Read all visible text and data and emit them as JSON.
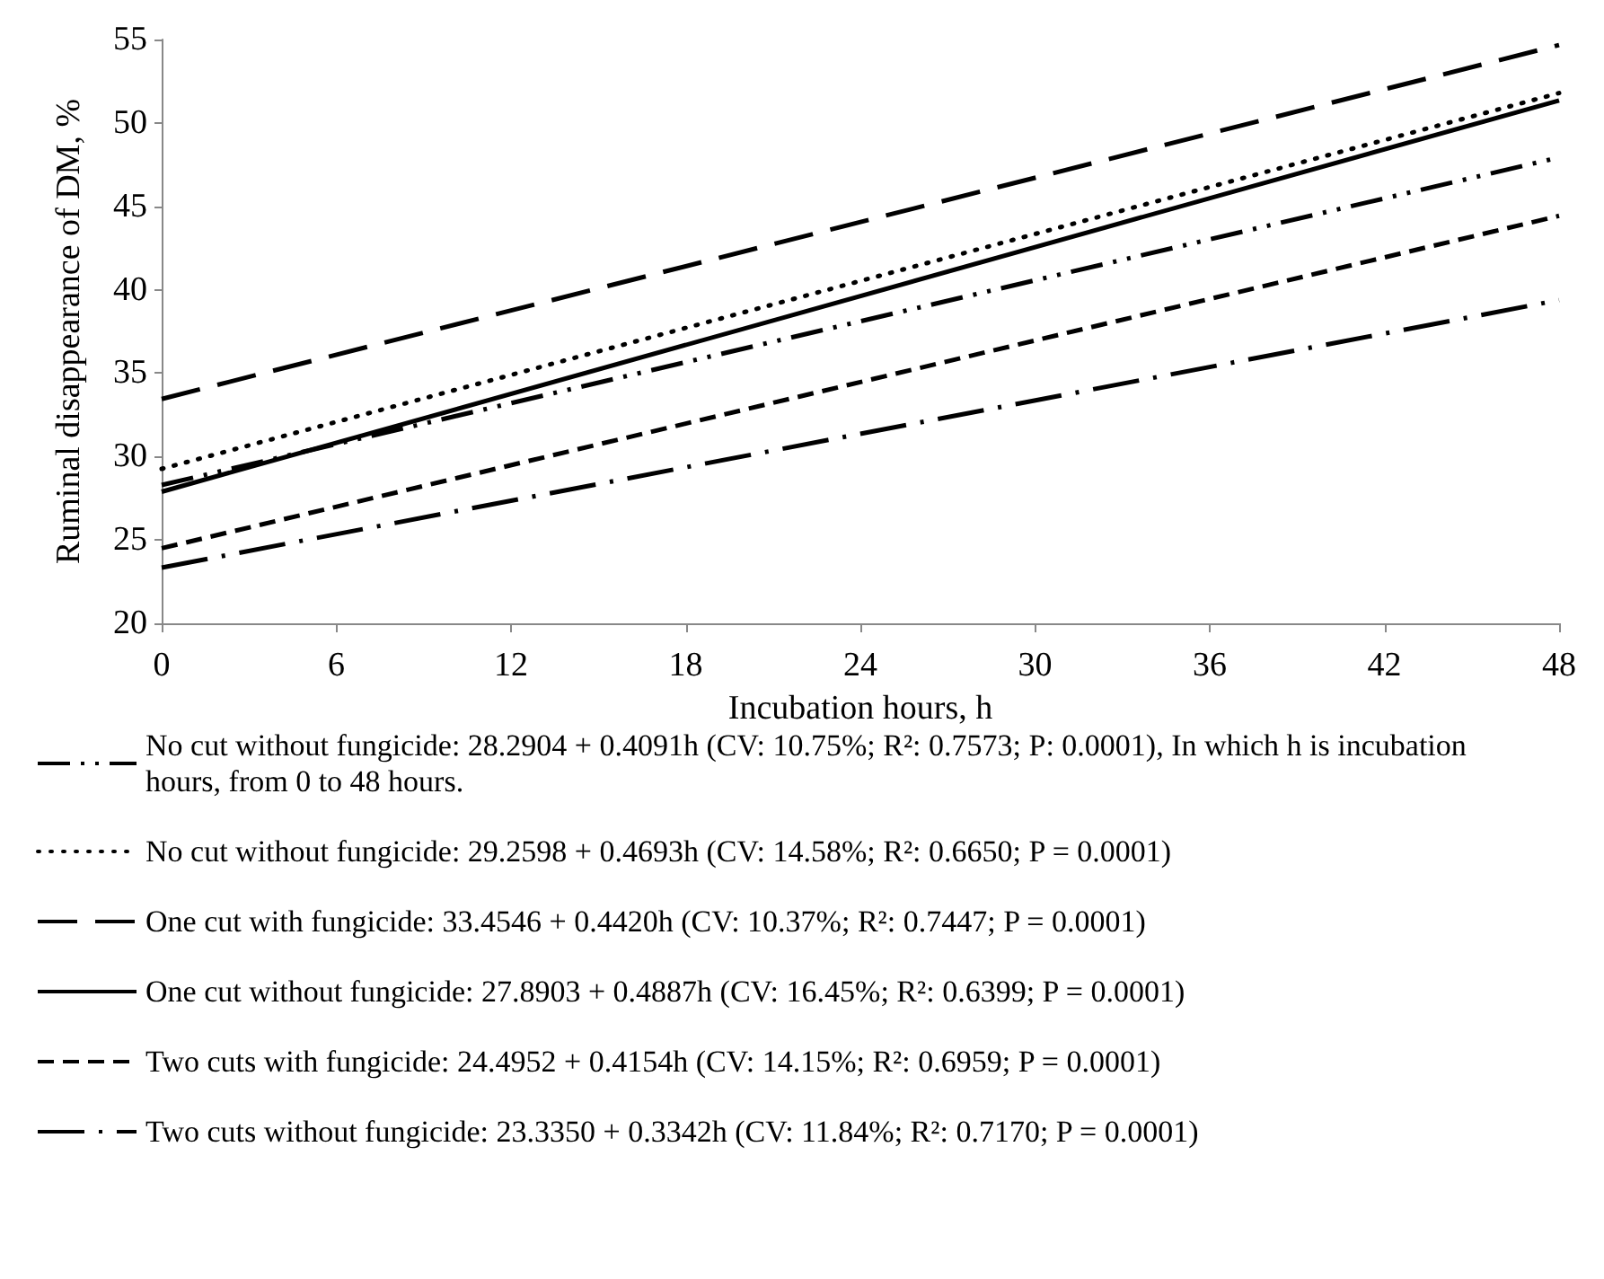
{
  "chart_data": {
    "type": "line",
    "xlabel": "Incubation hours, h",
    "ylabel": "Ruminal disappearance of DM, %",
    "x": [
      0,
      48
    ],
    "series": [
      {
        "name": "No cut without fungicide: 28.2904 + 0.4091h (CV: 10.75%; R²: 0.7573; P: 0.0001), In which h is incubation hours, from 0 to 48 hours.",
        "color": "#000000",
        "line_style": "dashdotdot",
        "values": [
          28.29,
          47.93
        ]
      },
      {
        "name": "No cut without fungicide: 29.2598 + 0.4693h (CV: 14.58%; R²: 0.6650; P = 0.0001)",
        "color": "#000000",
        "line_style": "dotted",
        "values": [
          29.26,
          51.79
        ]
      },
      {
        "name": "One cut with fungicide: 33.4546 + 0.4420h (CV: 10.37%; R²: 0.7447; P = 0.0001)",
        "color": "#000000",
        "line_style": "longdash",
        "values": [
          33.45,
          54.67
        ]
      },
      {
        "name": "One cut without fungicide: 27.8903 + 0.4887h (CV: 16.45%; R²: 0.6399; P = 0.0001)",
        "color": "#000000",
        "line_style": "solid",
        "values": [
          27.89,
          51.35
        ]
      },
      {
        "name": "Two cuts with fungicide: 24.4952 + 0.4154h (CV: 14.15%; R²: 0.6959; P = 0.0001)",
        "color": "#000000",
        "line_style": "dashed",
        "values": [
          24.5,
          44.43
        ]
      },
      {
        "name": "Two cuts without fungicide: 23.3350 + 0.3342h (CV: 11.84%; R²: 0.7170; P = 0.0001)",
        "color": "#000000",
        "line_style": "longdashdot",
        "values": [
          23.34,
          39.38
        ]
      }
    ],
    "xlim": [
      0,
      48
    ],
    "xticks": [
      0,
      6,
      12,
      18,
      24,
      30,
      36,
      42,
      48
    ],
    "ylim": [
      20,
      55
    ],
    "yticks": [
      20,
      25,
      30,
      35,
      40,
      45,
      50,
      55
    ],
    "grid": false,
    "legend": "bottom",
    "marker": "none"
  }
}
